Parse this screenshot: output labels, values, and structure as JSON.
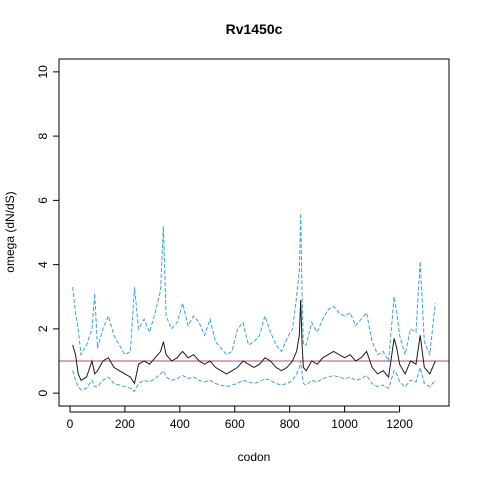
{
  "chart_data": {
    "type": "line",
    "title": "Rv1450c",
    "xlabel": "codon",
    "ylabel": "omega (dN/dS)",
    "xlim": [
      -40,
      1380
    ],
    "ylim": [
      -0.4,
      10.4
    ],
    "xticks": [
      0,
      200,
      400,
      600,
      800,
      1000,
      1200
    ],
    "yticks": [
      0,
      2,
      4,
      6,
      8,
      10
    ],
    "grid": false,
    "legend": "none",
    "reference_line": {
      "y": 1.0,
      "color": "#b0506e"
    },
    "colors": {
      "omega": "#1a1a1a",
      "ci": "#3aa0e0"
    },
    "series": [
      {
        "role": "omega",
        "x": [
          10,
          20,
          30,
          40,
          60,
          80,
          90,
          100,
          120,
          140,
          160,
          180,
          200,
          220,
          235,
          250,
          270,
          290,
          310,
          330,
          340,
          350,
          370,
          390,
          410,
          430,
          450,
          470,
          490,
          510,
          530,
          550,
          570,
          590,
          610,
          630,
          650,
          670,
          690,
          710,
          730,
          750,
          770,
          790,
          810,
          825,
          835,
          840,
          845,
          850,
          860,
          880,
          900,
          920,
          940,
          960,
          980,
          1000,
          1020,
          1040,
          1060,
          1080,
          1100,
          1120,
          1140,
          1160,
          1180,
          1190,
          1200,
          1220,
          1240,
          1260,
          1275,
          1290,
          1310,
          1330
        ],
        "y": [
          1.5,
          1.2,
          0.6,
          0.4,
          0.5,
          1.0,
          0.6,
          0.7,
          1.0,
          1.1,
          0.8,
          0.7,
          0.6,
          0.5,
          0.3,
          0.9,
          1.0,
          0.9,
          1.1,
          1.3,
          1.6,
          1.2,
          1.0,
          1.1,
          1.3,
          1.1,
          1.2,
          1.0,
          0.9,
          1.0,
          0.8,
          0.7,
          0.6,
          0.7,
          0.8,
          1.0,
          0.9,
          0.8,
          0.9,
          1.1,
          1.0,
          0.8,
          0.7,
          0.8,
          1.0,
          1.3,
          1.8,
          2.9,
          1.5,
          0.8,
          0.7,
          1.0,
          0.9,
          1.1,
          1.2,
          1.3,
          1.2,
          1.1,
          1.2,
          1.0,
          1.1,
          1.3,
          0.8,
          0.6,
          0.7,
          0.5,
          1.7,
          1.4,
          0.9,
          0.6,
          1.0,
          0.9,
          1.8,
          0.8,
          0.6,
          1.0
        ]
      },
      {
        "role": "upper",
        "x": [
          10,
          20,
          30,
          40,
          60,
          80,
          90,
          100,
          120,
          140,
          160,
          180,
          200,
          220,
          235,
          250,
          270,
          290,
          310,
          330,
          340,
          350,
          370,
          390,
          410,
          430,
          450,
          470,
          490,
          510,
          530,
          550,
          570,
          590,
          610,
          630,
          650,
          670,
          690,
          710,
          730,
          750,
          770,
          790,
          810,
          825,
          835,
          840,
          845,
          850,
          860,
          880,
          900,
          920,
          940,
          960,
          980,
          1000,
          1020,
          1040,
          1060,
          1080,
          1100,
          1120,
          1140,
          1160,
          1180,
          1190,
          1200,
          1220,
          1240,
          1260,
          1275,
          1290,
          1310,
          1330
        ],
        "y": [
          3.3,
          2.5,
          2.0,
          1.2,
          1.5,
          2.0,
          3.1,
          1.4,
          2.0,
          2.4,
          1.8,
          1.5,
          1.2,
          1.3,
          3.3,
          2.0,
          2.3,
          1.9,
          2.5,
          3.2,
          5.2,
          2.4,
          2.0,
          2.2,
          2.8,
          2.1,
          2.4,
          2.2,
          1.8,
          2.3,
          1.6,
          1.4,
          1.2,
          1.3,
          2.0,
          2.2,
          1.5,
          1.6,
          1.8,
          2.4,
          1.9,
          1.5,
          1.3,
          1.7,
          2.0,
          3.0,
          3.8,
          5.6,
          3.0,
          1.5,
          1.5,
          2.2,
          1.9,
          2.3,
          2.6,
          2.7,
          2.5,
          2.4,
          2.5,
          2.1,
          2.3,
          2.5,
          1.6,
          1.2,
          1.3,
          1.0,
          3.0,
          2.5,
          1.8,
          1.2,
          2.0,
          1.9,
          4.1,
          1.6,
          1.2,
          2.8
        ]
      },
      {
        "role": "lower",
        "x": [
          10,
          20,
          30,
          40,
          60,
          80,
          90,
          100,
          120,
          140,
          160,
          180,
          200,
          220,
          235,
          250,
          270,
          290,
          310,
          330,
          340,
          350,
          370,
          390,
          410,
          430,
          450,
          470,
          490,
          510,
          530,
          550,
          570,
          590,
          610,
          630,
          650,
          670,
          690,
          710,
          730,
          750,
          770,
          790,
          810,
          825,
          835,
          840,
          845,
          850,
          860,
          880,
          900,
          920,
          940,
          960,
          980,
          1000,
          1020,
          1040,
          1060,
          1080,
          1100,
          1120,
          1140,
          1160,
          1180,
          1190,
          1200,
          1220,
          1240,
          1260,
          1275,
          1290,
          1310,
          1330
        ],
        "y": [
          0.7,
          0.4,
          0.2,
          0.1,
          0.15,
          0.4,
          0.2,
          0.2,
          0.4,
          0.5,
          0.3,
          0.25,
          0.2,
          0.15,
          0.05,
          0.3,
          0.4,
          0.35,
          0.45,
          0.6,
          0.7,
          0.5,
          0.4,
          0.45,
          0.55,
          0.45,
          0.5,
          0.4,
          0.35,
          0.4,
          0.3,
          0.25,
          0.2,
          0.25,
          0.3,
          0.4,
          0.35,
          0.3,
          0.35,
          0.45,
          0.4,
          0.3,
          0.25,
          0.3,
          0.4,
          0.6,
          0.8,
          1.0,
          0.6,
          0.3,
          0.25,
          0.4,
          0.35,
          0.45,
          0.5,
          0.55,
          0.5,
          0.45,
          0.5,
          0.4,
          0.45,
          0.55,
          0.3,
          0.2,
          0.25,
          0.15,
          0.7,
          0.6,
          0.35,
          0.2,
          0.4,
          0.35,
          0.8,
          0.3,
          0.2,
          0.4
        ]
      }
    ]
  }
}
